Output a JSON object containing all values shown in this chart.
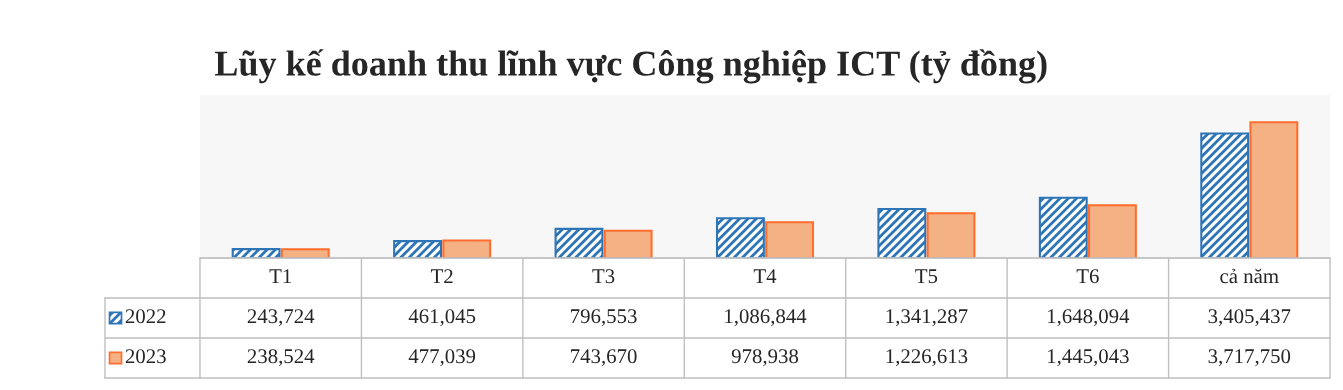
{
  "chart_data": {
    "type": "bar",
    "legend": "bottom left",
    "title": "Lũy kế doanh thu lĩnh vực Công nghiệp ICT (tỷ đồng)",
    "categories": [
      "T1",
      "T2",
      "T3",
      "T4",
      "T5",
      "T6",
      "cả năm"
    ],
    "series": [
      {
        "name": "2022",
        "color": "#2e75b6",
        "values": [
          243724,
          461045,
          796553,
          1086844,
          1341287,
          1648094,
          3405437
        ],
        "value_labels": [
          "243,724",
          "461,045",
          "796,553",
          "1,086,844",
          "1,341,287",
          "1,648,094",
          "3,405,437"
        ]
      },
      {
        "name": "2023",
        "color": "#f4b183",
        "values": [
          238524,
          477039,
          743670,
          978938,
          1226613,
          1445043,
          3717750
        ],
        "value_labels": [
          "238,524",
          "477,039",
          "743,670",
          "978,938",
          "1,226,613",
          "1,445,043",
          "3,717,750"
        ]
      }
    ]
  }
}
